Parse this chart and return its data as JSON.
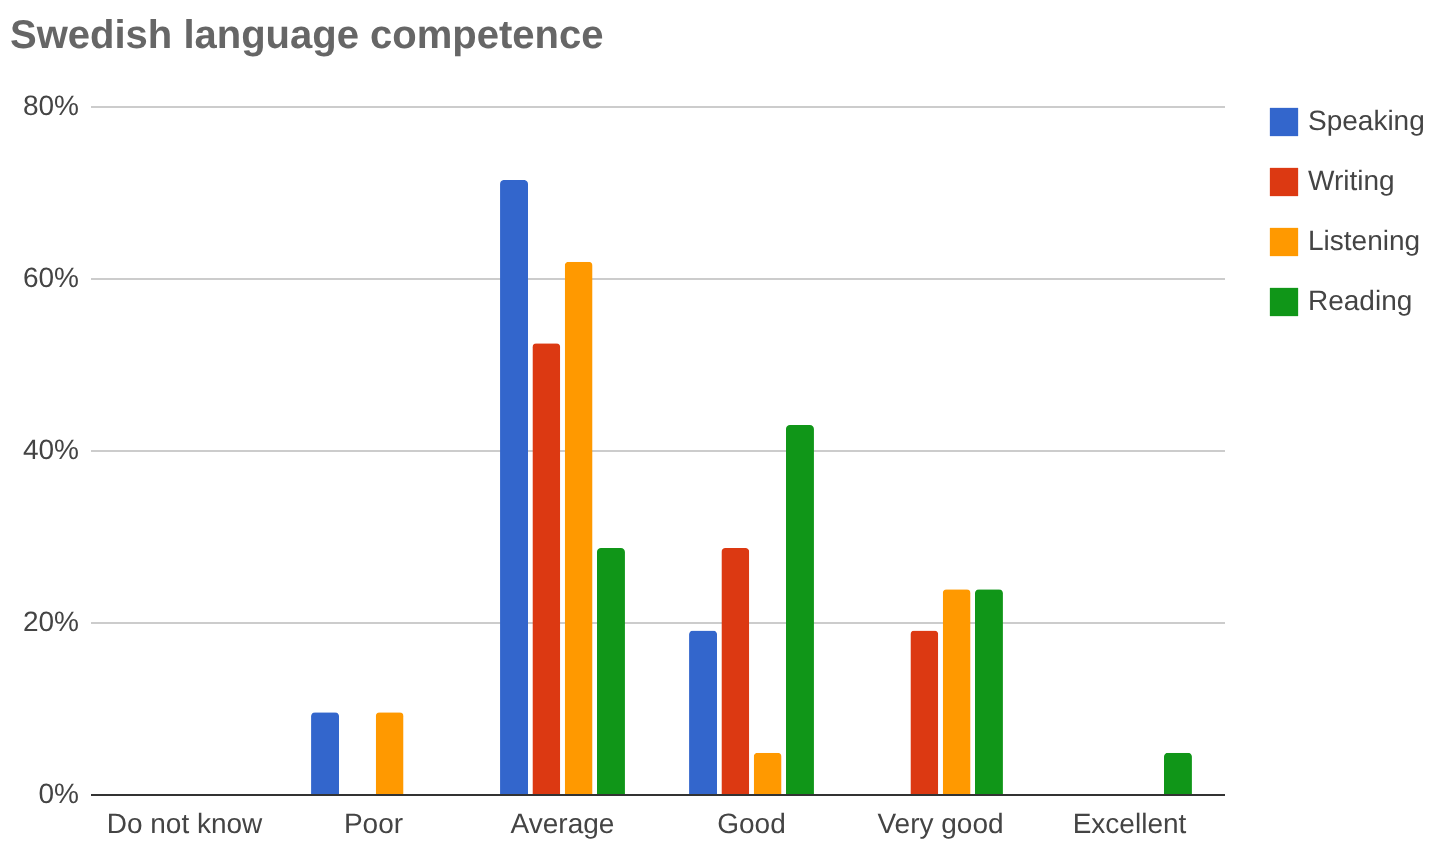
{
  "chart_data": {
    "type": "bar",
    "title": "Swedish language competence",
    "categories": [
      "Do not know",
      "Poor",
      "Average",
      "Good",
      "Very good",
      "Excellent"
    ],
    "series": [
      {
        "name": "Speaking",
        "color": "#3366cc",
        "values": [
          0,
          9.5,
          71.4,
          19.0,
          0,
          0
        ]
      },
      {
        "name": "Writing",
        "color": "#dc3912",
        "values": [
          0,
          0,
          52.4,
          28.6,
          19.0,
          0
        ]
      },
      {
        "name": "Listening",
        "color": "#ff9900",
        "values": [
          0,
          9.5,
          61.9,
          4.8,
          23.8,
          0
        ]
      },
      {
        "name": "Reading",
        "color": "#109618",
        "values": [
          0,
          0,
          28.6,
          42.9,
          23.8,
          4.8
        ]
      }
    ],
    "ylim": [
      0,
      80
    ],
    "yticks": [
      {
        "value": 0,
        "label": "0%"
      },
      {
        "value": 20,
        "label": "20%"
      },
      {
        "value": 40,
        "label": "40%"
      },
      {
        "value": 60,
        "label": "60%"
      },
      {
        "value": 80,
        "label": "80%"
      }
    ],
    "grid": "y",
    "legend": "top right"
  }
}
